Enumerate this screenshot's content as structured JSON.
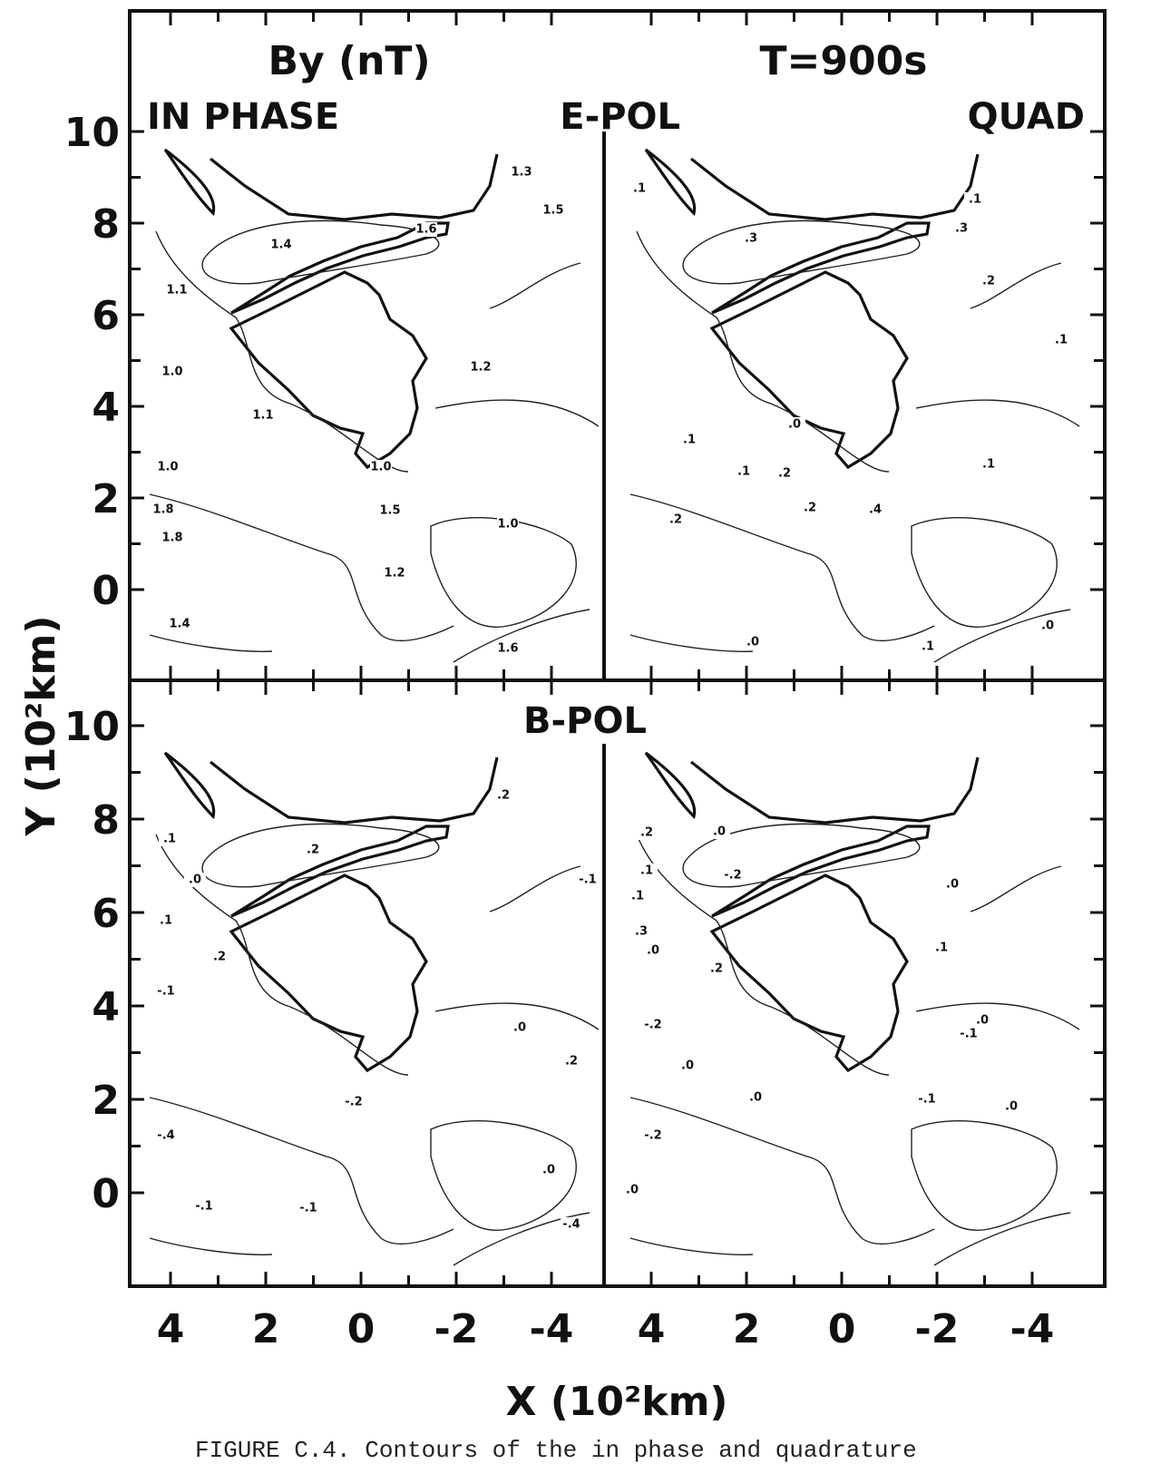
{
  "figure": {
    "title": "By (nT)",
    "period": "T=900s",
    "in_phase": "IN PHASE",
    "e_pol": "E-POL",
    "quad": "QUAD",
    "b_pol": "B-POL",
    "x_label": "X (10²km)",
    "y_label": "Y (10²km)",
    "x_ticks": [
      4,
      2,
      0,
      -2,
      -4
    ],
    "y_ticks": [
      10,
      8,
      6,
      4,
      2,
      0
    ],
    "caption": "FIGURE C.4. Contours of the in phase and quadrature",
    "panels": [
      {
        "contour_labels": [
          "1.3",
          "1.5",
          "1.6",
          "1.4",
          "1.1",
          "1.0",
          "1.2",
          "1.1",
          "1.0",
          "1.0",
          "1.5",
          "1.8",
          "1.8",
          "1.0",
          "1.2",
          "1.4",
          "1.6"
        ]
      },
      {
        "contour_labels": [
          ".1",
          ".1",
          ".3",
          ".3",
          ".2",
          ".1",
          ".0",
          ".1",
          ".1",
          ".2",
          ".1",
          ".2",
          ".2",
          ".4",
          ".0",
          ".1",
          ".0"
        ]
      },
      {
        "contour_labels": [
          ".2",
          ".2",
          ".1",
          ".0",
          ".1",
          ".2",
          "-.1",
          "-.1",
          ".0",
          "-.2",
          ".2",
          "-.4",
          ".0",
          "-.1",
          "-.1",
          "-.4"
        ]
      },
      {
        "contour_labels": [
          ".2",
          ".0",
          ".1",
          "-.2",
          ".1",
          ".0",
          ".3",
          ".0",
          ".2",
          ".1",
          ".0",
          "-.2",
          "-.1",
          ".0",
          ".0",
          "-.1",
          ".0",
          "-.2",
          ".0"
        ]
      }
    ]
  }
}
